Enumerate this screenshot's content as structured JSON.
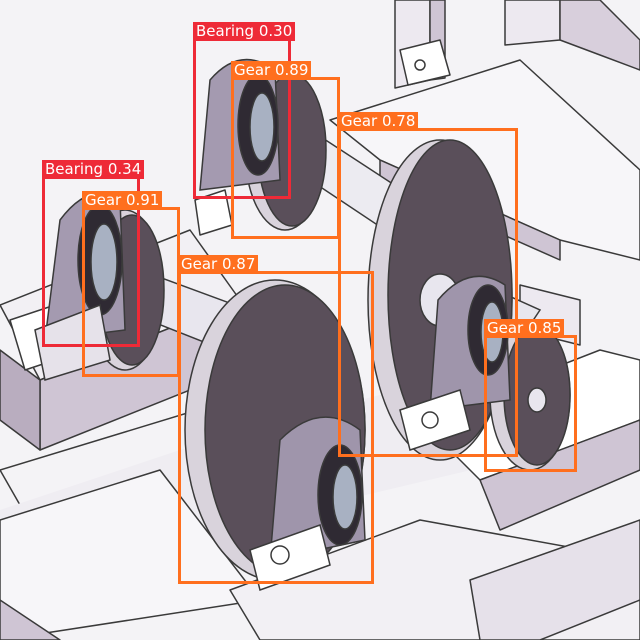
{
  "colors": {
    "gear": "#ff6f1e",
    "bearing": "#ee2a37",
    "label_text": "#ffffff"
  },
  "detections": [
    {
      "label": "Bearing 0.30",
      "class": "bearing"
    },
    {
      "label": "Gear 0.89",
      "class": "gear"
    },
    {
      "label": "Gear 0.78",
      "class": "gear"
    },
    {
      "label": "Bearing 0.34",
      "class": "bearing"
    },
    {
      "label": "Gear 0.91",
      "class": "gear"
    },
    {
      "label": "Gear 0.87",
      "class": "gear"
    },
    {
      "label": "Gear 0.85",
      "class": "gear"
    }
  ]
}
